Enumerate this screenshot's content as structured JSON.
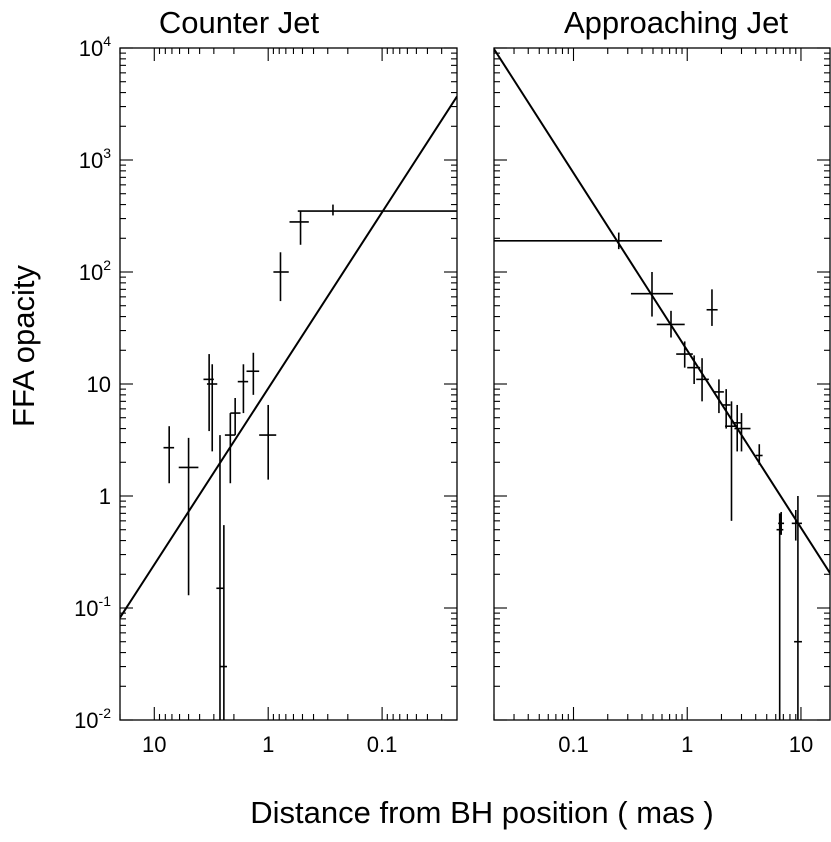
{
  "chart_data": {
    "ylabel": "FFA opacity",
    "xlabel": "Distance from BH position ( mas )",
    "y_ticks": [
      {
        "value": 0.01,
        "base": "10",
        "exp": "-2"
      },
      {
        "value": 0.1,
        "base": "10",
        "exp": "-1"
      },
      {
        "value": 1,
        "base": "1",
        "exp": ""
      },
      {
        "value": 10,
        "base": "10",
        "exp": ""
      },
      {
        "value": 100,
        "base": "10",
        "exp": "2"
      },
      {
        "value": 1000,
        "base": "10",
        "exp": "3"
      },
      {
        "value": 10000,
        "base": "10",
        "exp": "4"
      }
    ],
    "panels": [
      {
        "type": "scatter",
        "title": "Counter Jet",
        "xscale": "log",
        "x_reversed": true,
        "xlim": [
          20,
          0.022
        ],
        "ylim": [
          0.01,
          10000
        ],
        "x_ticks": [
          {
            "value": 10,
            "label": "10"
          },
          {
            "value": 1,
            "label": "1"
          },
          {
            "value": 0.1,
            "label": "0.1"
          }
        ],
        "fit_line": {
          "x": [
            20,
            0.022
          ],
          "y": [
            0.082,
            3700
          ]
        },
        "points": [
          {
            "x": 7.4,
            "y": 2.7,
            "x_lo": 6.7,
            "x_hi": 8.3,
            "y_lo": 1.3,
            "y_hi": 4.2
          },
          {
            "x": 5.0,
            "y": 1.8,
            "x_lo": 4.1,
            "x_hi": 6.1,
            "y_lo": 0.13,
            "y_hi": 3.3
          },
          {
            "x": 3.3,
            "y": 11,
            "x_lo": 3.0,
            "x_hi": 3.7,
            "y_lo": 3.8,
            "y_hi": 18.5
          },
          {
            "x": 3.1,
            "y": 10,
            "x_lo": 2.8,
            "x_hi": 3.45,
            "y_lo": 2.5,
            "y_hi": 15
          },
          {
            "x": 2.65,
            "y": 0.15,
            "x_lo": 2.45,
            "x_hi": 2.85,
            "y_lo": 0.01,
            "y_hi": 3.5
          },
          {
            "x": 2.45,
            "y": 0.03,
            "x_lo": 2.3,
            "x_hi": 2.65,
            "y_lo": 0.01,
            "y_hi": 0.55
          },
          {
            "x": 2.15,
            "y": 3.5,
            "x_lo": 1.95,
            "x_hi": 2.4,
            "y_lo": 1.3,
            "y_hi": 5.5
          },
          {
            "x": 1.95,
            "y": 5.5,
            "x_lo": 1.75,
            "x_hi": 2.15,
            "y_lo": 3.5,
            "y_hi": 7.5
          },
          {
            "x": 1.65,
            "y": 10.5,
            "x_lo": 1.5,
            "x_hi": 1.85,
            "y_lo": 5.5,
            "y_hi": 15
          },
          {
            "x": 1.35,
            "y": 13,
            "x_lo": 1.2,
            "x_hi": 1.55,
            "y_lo": 8,
            "y_hi": 19
          },
          {
            "x": 1.0,
            "y": 3.5,
            "x_lo": 0.85,
            "x_hi": 1.2,
            "y_lo": 1.4,
            "y_hi": 6.5
          },
          {
            "x": 0.78,
            "y": 100,
            "x_lo": 0.66,
            "x_hi": 0.9,
            "y_lo": 55,
            "y_hi": 150
          },
          {
            "x": 0.52,
            "y": 280,
            "x_lo": 0.44,
            "x_hi": 0.65,
            "y_lo": 175,
            "y_hi": 350
          },
          {
            "x": 0.27,
            "y": 350,
            "x_lo": 0.022,
            "x_hi": 0.55,
            "y_lo": 320,
            "y_hi": 400
          }
        ]
      },
      {
        "type": "scatter",
        "title": "Approaching Jet",
        "xscale": "log",
        "x_reversed": false,
        "xlim": [
          0.02,
          18
        ],
        "ylim": [
          0.01,
          10000
        ],
        "x_ticks": [
          {
            "value": 0.1,
            "label": "0.1"
          },
          {
            "value": 1,
            "label": "1"
          },
          {
            "value": 10,
            "label": "10"
          }
        ],
        "fit_line": {
          "x": [
            0.02,
            18
          ],
          "y": [
            9800,
            0.205
          ]
        },
        "points": [
          {
            "x": 0.25,
            "y": 190,
            "x_lo": 0.02,
            "x_hi": 0.6,
            "y_lo": 160,
            "y_hi": 225
          },
          {
            "x": 0.49,
            "y": 64,
            "x_lo": 0.32,
            "x_hi": 0.75,
            "y_lo": 40,
            "y_hi": 100
          },
          {
            "x": 0.72,
            "y": 34,
            "x_lo": 0.54,
            "x_hi": 0.95,
            "y_lo": 26,
            "y_hi": 45
          },
          {
            "x": 0.95,
            "y": 18.5,
            "x_lo": 0.8,
            "x_hi": 1.12,
            "y_lo": 14,
            "y_hi": 24
          },
          {
            "x": 1.15,
            "y": 14,
            "x_lo": 1.0,
            "x_hi": 1.3,
            "y_lo": 10,
            "y_hi": 18
          },
          {
            "x": 1.35,
            "y": 11,
            "x_lo": 1.2,
            "x_hi": 1.55,
            "y_lo": 7,
            "y_hi": 17
          },
          {
            "x": 1.65,
            "y": 46,
            "x_lo": 1.48,
            "x_hi": 1.85,
            "y_lo": 33,
            "y_hi": 70
          },
          {
            "x": 1.9,
            "y": 8.5,
            "x_lo": 1.7,
            "x_hi": 2.1,
            "y_lo": 5.5,
            "y_hi": 11
          },
          {
            "x": 2.2,
            "y": 6.5,
            "x_lo": 2.0,
            "x_hi": 2.4,
            "y_lo": 4,
            "y_hi": 9
          },
          {
            "x": 2.45,
            "y": 4.2,
            "x_lo": 2.15,
            "x_hi": 2.75,
            "y_lo": 0.6,
            "y_hi": 7
          },
          {
            "x": 2.75,
            "y": 4.5,
            "x_lo": 2.5,
            "x_hi": 3.0,
            "y_lo": 2.5,
            "y_hi": 6.5
          },
          {
            "x": 3.0,
            "y": 4.0,
            "x_lo": 2.6,
            "x_hi": 3.6,
            "y_lo": 2.5,
            "y_hi": 5.5
          },
          {
            "x": 4.3,
            "y": 2.3,
            "x_lo": 4.0,
            "x_hi": 4.6,
            "y_lo": 1.9,
            "y_hi": 2.9
          },
          {
            "x": 6.5,
            "y": 0.5,
            "x_lo": 6.1,
            "x_hi": 7.0,
            "y_lo": 0.01,
            "y_hi": 0.7
          },
          {
            "x": 6.7,
            "y": 0.57,
            "x_lo": 6.3,
            "x_hi": 7.1,
            "y_lo": 0.45,
            "y_hi": 0.72
          },
          {
            "x": 9.4,
            "y": 0.05,
            "x_lo": 8.7,
            "x_hi": 10.2,
            "y_lo": 0.01,
            "y_hi": 1.0
          },
          {
            "x": 9.0,
            "y": 0.57,
            "x_lo": 8.3,
            "x_hi": 10.2,
            "y_lo": 0.4,
            "y_hi": 0.75
          }
        ]
      }
    ]
  }
}
